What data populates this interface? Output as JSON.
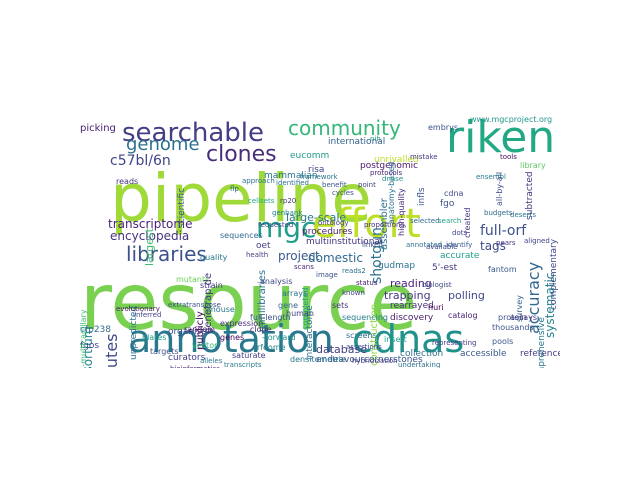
{
  "image_alt": "word cloud",
  "words": [
    {
      "text": "resource",
      "color": "#7ad151"
    },
    {
      "text": "pipeline",
      "color": "#a0da39"
    },
    {
      "text": "annotation",
      "color": "#2a788e"
    },
    {
      "text": "cdnas",
      "color": "#21918c"
    },
    {
      "text": "effort",
      "color": "#bddf26"
    },
    {
      "text": "riken",
      "color": "#22a884"
    },
    {
      "text": "searchable",
      "color": "#433e85"
    },
    {
      "text": "community",
      "color": "#35b779"
    },
    {
      "text": "mgc",
      "color": "#1f9e89"
    },
    {
      "text": "genome",
      "color": "#2c728e"
    },
    {
      "text": "clones",
      "color": "#472d7b"
    },
    {
      "text": "libraries",
      "color": "#3b528b"
    },
    {
      "text": "accuracy",
      "color": "#31688e"
    },
    {
      "text": "c57bl/6n",
      "color": "#414487"
    },
    {
      "text": "consortium",
      "color": "#26828e"
    },
    {
      "text": "institutes",
      "color": "#3e4a89"
    },
    {
      "text": "transcriptome",
      "color": "#482475"
    },
    {
      "text": "encyclopedia",
      "color": "#46337f"
    },
    {
      "text": "large-scale",
      "color": "#297b8e"
    },
    {
      "text": "project",
      "color": "#38598c"
    },
    {
      "text": "full-orf",
      "color": "#3b528b"
    },
    {
      "text": "shotgun",
      "color": "#2d708e"
    },
    {
      "text": "domestic",
      "color": "#31688e"
    },
    {
      "text": "database",
      "color": "#433e85"
    },
    {
      "text": "tags",
      "color": "#3e4a89"
    },
    {
      "text": "systematic",
      "color": "#25848e"
    },
    {
      "text": "reading",
      "color": "#482878"
    },
    {
      "text": "trapping",
      "color": "#453781"
    },
    {
      "text": "polling",
      "color": "#3f4889"
    },
    {
      "text": "rearrayed",
      "color": "#46327e"
    },
    {
      "text": "discovery",
      "color": "#481d6f"
    },
    {
      "text": "collection",
      "color": "#2c738e"
    },
    {
      "text": "accessible",
      "color": "#38598c"
    },
    {
      "text": "reference",
      "color": "#443b84"
    },
    {
      "text": "curators",
      "color": "#414487"
    },
    {
      "text": "endeavourcornerstones",
      "color": "#3b528b"
    },
    {
      "text": "comprehensive",
      "color": "#2a788e"
    },
    {
      "text": "complementary",
      "color": "#3e4989"
    },
    {
      "text": "subtracted",
      "color": "#453882"
    },
    {
      "text": "unrivalled",
      "color": "#bddf26"
    },
    {
      "text": "scientific",
      "color": "#39568c"
    },
    {
      "text": "international",
      "color": "#33638d"
    },
    {
      "text": "eucomm",
      "color": "#1f9a8a"
    },
    {
      "text": "mammalian",
      "color": "#2a778e"
    },
    {
      "text": "picking",
      "color": "#481f70"
    },
    {
      "text": "largest",
      "color": "#3fbc73"
    },
    {
      "text": "gudmap",
      "color": "#2d718e"
    },
    {
      "text": "risa",
      "color": "#404588"
    },
    {
      "text": "oet",
      "color": "#424086"
    },
    {
      "text": "fgos",
      "color": "#3e4c8a"
    },
    {
      "text": "fgo",
      "color": "#3b528b"
    },
    {
      "text": "www.mgcproject.org",
      "color": "#1f968b"
    },
    {
      "text": "postgenomic",
      "color": "#481769"
    },
    {
      "text": "embrys",
      "color": "#3b528b"
    },
    {
      "text": "infls",
      "color": "#38598c"
    },
    {
      "text": "assembler",
      "color": "#2c728e"
    },
    {
      "text": "multiinstitutional",
      "color": "#46337f"
    },
    {
      "text": "high-quality",
      "color": "#472a7a"
    },
    {
      "text": "anatomy-based",
      "color": "#2c728e"
    },
    {
      "text": "5'-est",
      "color": "#453781"
    },
    {
      "text": "accurate",
      "color": "#1fa188"
    },
    {
      "text": "procedures",
      "color": "#481f70"
    },
    {
      "text": "huri",
      "color": "#440154"
    },
    {
      "text": "survey",
      "color": "#34618d"
    },
    {
      "text": "organise",
      "color": "#3b528b"
    },
    {
      "text": "publicly",
      "color": "#46085c"
    },
    {
      "text": "genetrap.de",
      "color": "#46337f"
    },
    {
      "text": "unpredicted",
      "color": "#2c728e"
    },
    {
      "text": "384-multicapillary",
      "color": "#3dbc74"
    },
    {
      "text": "minilibraries",
      "color": "#2d708e"
    },
    {
      "text": "construction",
      "color": "#90d743"
    },
    {
      "text": "fantom",
      "color": "#38598c"
    },
    {
      "text": "created",
      "color": "#424086"
    },
    {
      "text": "all-by-all",
      "color": "#3e4a89"
    },
    {
      "text": "cfp238",
      "color": "#2f6c8e"
    },
    {
      "text": "random",
      "color": "#481a6c"
    },
    {
      "text": "thousands",
      "color": "#3b528b"
    },
    {
      "text": "saturate",
      "color": "#433e85"
    },
    {
      "text": "densitometrie",
      "color": "#2a788e"
    },
    {
      "text": "interactome",
      "color": "#2c728e"
    },
    {
      "text": "hybridization",
      "color": "#433e85"
    },
    {
      "text": "-forward",
      "color": "#1f948c"
    },
    {
      "text": "completed",
      "color": "#20a386"
    },
    {
      "text": "gene",
      "color": "#31688e"
    },
    {
      "text": "full-length",
      "color": "#3b528b"
    },
    {
      "text": "sequencing",
      "color": "#287d8e"
    },
    {
      "text": "library",
      "color": "#5ec962"
    },
    {
      "text": "mouse",
      "color": "#2c728e"
    },
    {
      "text": "human",
      "color": "#424086"
    },
    {
      "text": "cdna",
      "color": "#3e4a89"
    },
    {
      "text": "orfeome",
      "color": "#26828e"
    },
    {
      "text": "clone",
      "color": "#482878"
    },
    {
      "text": "genes",
      "color": "#440154"
    },
    {
      "text": "vector",
      "color": "#35b779"
    },
    {
      "text": "sets",
      "color": "#46337f"
    },
    {
      "text": "protein",
      "color": "#3b528b"
    },
    {
      "text": "screens",
      "color": "#2d708e"
    },
    {
      "text": "expression",
      "color": "#472d7b"
    },
    {
      "text": "insert",
      "color": "#1f9e89"
    },
    {
      "text": "catalog",
      "color": "#481f70"
    },
    {
      "text": "assays",
      "color": "#433e85"
    },
    {
      "text": "pools",
      "color": "#38598c"
    },
    {
      "text": "quality",
      "color": "#2a788e"
    },
    {
      "text": "mutants",
      "color": "#6ece58"
    },
    {
      "text": "analysis",
      "color": "#3e4989"
    },
    {
      "text": "sequences",
      "color": "#31688e"
    },
    {
      "text": "strain",
      "color": "#453781"
    },
    {
      "text": "arrays",
      "color": "#2c728e"
    },
    {
      "text": "plates",
      "color": "#1fa188"
    },
    {
      "text": "reads",
      "color": "#46327e"
    },
    {
      "text": "targets",
      "color": "#3b528b"
    },
    {
      "text": "inferred",
      "color": "#414487"
    },
    {
      "text": "alleles",
      "color": "#2a778e"
    },
    {
      "text": "bioinformatics",
      "color": "#482475"
    },
    {
      "text": "transcripts",
      "color": "#287d8e"
    },
    {
      "text": "assertions",
      "color": "#3e4a89"
    },
    {
      "text": "undertaking",
      "color": "#2c728e"
    },
    {
      "text": "evolutionary",
      "color": "#481769"
    },
    {
      "text": "extratranspose",
      "color": "#3b528b"
    },
    {
      "text": "representing",
      "color": "#443b84"
    },
    {
      "text": "aligned",
      "color": "#414487"
    },
    {
      "text": "pears",
      "color": "#453882"
    },
    {
      "text": "budgets",
      "color": "#31688e"
    },
    {
      "text": "deserts",
      "color": "#2c738e"
    },
    {
      "text": "cellsets",
      "color": "#22a884"
    },
    {
      "text": "requested",
      "color": "#3e4c8a"
    },
    {
      "text": "identified",
      "color": "#2d718e"
    },
    {
      "text": "rp20",
      "color": "#46337f"
    },
    {
      "text": "genbank",
      "color": "#26828e"
    },
    {
      "text": "benefit",
      "color": "#38598c"
    },
    {
      "text": "point",
      "color": "#433e85"
    },
    {
      "text": "scans",
      "color": "#482878"
    },
    {
      "text": "image",
      "color": "#3b528b"
    },
    {
      "text": "ensembl",
      "color": "#2a788e"
    },
    {
      "text": "tools",
      "color": "#46085c"
    },
    {
      "text": "nih",
      "color": "#1f9a8a"
    },
    {
      "text": "flp",
      "color": "#31688e"
    },
    {
      "text": "approach",
      "color": "#2c728e"
    },
    {
      "text": "health",
      "color": "#433e85"
    },
    {
      "text": "cycles",
      "color": "#3b528b"
    },
    {
      "text": "known",
      "color": "#414487"
    },
    {
      "text": "status",
      "color": "#481f70"
    },
    {
      "text": "annotated",
      "color": "#2d708e"
    },
    {
      "text": "available",
      "color": "#3e4a89"
    },
    {
      "text": "identify",
      "color": "#38598c"
    },
    {
      "text": "protocols",
      "color": "#482475"
    },
    {
      "text": "mistake",
      "color": "#443b84"
    },
    {
      "text": "selected",
      "color": "#31688e"
    },
    {
      "text": "dnase",
      "color": "#21918c"
    },
    {
      "text": "linked",
      "color": "#3b528b"
    },
    {
      "text": "proportions",
      "color": "#46337f"
    },
    {
      "text": "framework",
      "color": "#2a788e"
    },
    {
      "text": "ontology",
      "color": "#433e85"
    },
    {
      "text": "biologist",
      "color": "#3e4989"
    },
    {
      "text": "reads2",
      "color": "#2c728e"
    },
    {
      "text": "search",
      "color": "#1f9e89"
    },
    {
      "text": "dots",
      "color": "#414487"
    },
    {
      "text": "mice",
      "color": "#3b528b"
    },
    {
      "text": "loci",
      "color": "#481a6c"
    }
  ]
}
